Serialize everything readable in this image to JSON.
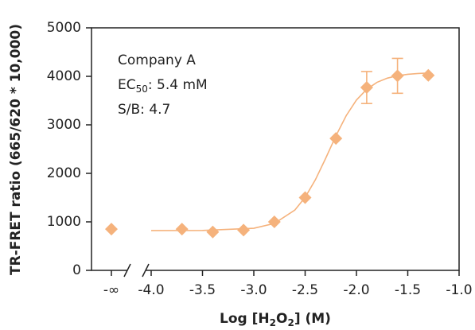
{
  "chart_data": {
    "type": "scatter",
    "x_label_parts": [
      "Log [H",
      "2",
      "O",
      "2",
      "] (M)"
    ],
    "y_label": "TR-FRET ratio (665/620 * 10,000)",
    "annotation": {
      "line1": "Company A",
      "ec_parts": [
        "EC",
        "50",
        ": 5.4 mM"
      ],
      "line3": "S/B: 4.7"
    },
    "color": "#f5b27c",
    "zero_dose": {
      "label": "-∞",
      "value": 850
    },
    "x": [
      -3.7,
      -3.4,
      -3.1,
      -2.8,
      -2.5,
      -2.2,
      -1.9,
      -1.6,
      -1.3
    ],
    "values": [
      850,
      790,
      830,
      1000,
      1500,
      2720,
      3770,
      4010,
      4020
    ],
    "errors": [
      null,
      null,
      null,
      null,
      null,
      null,
      330,
      360,
      null
    ],
    "curve": {
      "x": [
        -4.0,
        -3.5,
        -3.0,
        -2.8,
        -2.6,
        -2.5,
        -2.4,
        -2.3,
        -2.2,
        -2.1,
        -2.0,
        -1.9,
        -1.8,
        -1.7,
        -1.6,
        -1.5,
        -1.4,
        -1.3
      ],
      "values": [
        820,
        823,
        868,
        967,
        1244,
        1505,
        1868,
        2309,
        2774,
        3189,
        3512,
        3733,
        3876,
        3962,
        4013,
        4042,
        4058,
        4069
      ]
    },
    "xlim": [
      -4.0,
      -1.0
    ],
    "xticks": [
      {
        "value": -4.0,
        "label": "-4.0"
      },
      {
        "value": -3.5,
        "label": "-3.5"
      },
      {
        "value": -3.0,
        "label": "-3.0"
      },
      {
        "value": -2.5,
        "label": "-2.5"
      },
      {
        "value": -2.0,
        "label": "-2.0"
      },
      {
        "value": -1.5,
        "label": "-1.5"
      },
      {
        "value": -1.0,
        "label": "-1.0"
      }
    ],
    "ylim": [
      0,
      5000
    ],
    "yticks": [
      0,
      1000,
      2000,
      3000,
      4000,
      5000
    ]
  }
}
